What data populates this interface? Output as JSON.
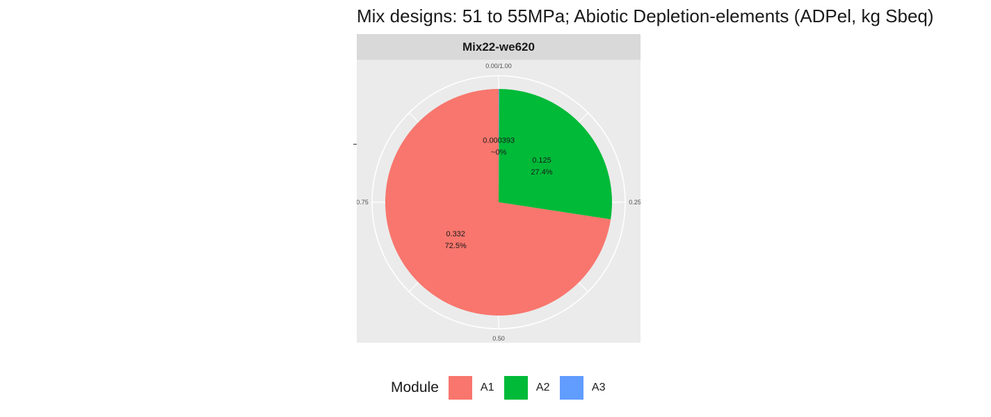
{
  "chart_data": {
    "type": "pie",
    "title": "Mix designs: 51 to 55MPa; Abiotic Depletion-elements (ADPel, kg Sbeq)",
    "facet": "Mix22-we620",
    "legend_title": "Module",
    "legend_position": "bottom",
    "grid": true,
    "theta_axis_ticks": [
      {
        "value": 0,
        "label": "0.00/1.00"
      },
      {
        "value": 0.25,
        "label": "0.25"
      },
      {
        "value": 0.5,
        "label": "0.50"
      },
      {
        "value": 0.75,
        "label": "0.75"
      }
    ],
    "slices": [
      {
        "module": "A3",
        "value": 0.000393,
        "value_label": "0.000393",
        "percent_label": "~0%",
        "color": "#619cff"
      },
      {
        "module": "A2",
        "value": 0.125,
        "value_label": "0.125",
        "percent_label": "27.4%",
        "color": "#00ba38"
      },
      {
        "module": "A1",
        "value": 0.332,
        "value_label": "0.332",
        "percent_label": "72.5%",
        "color": "#f8766d"
      }
    ],
    "legend": [
      {
        "label": "A1",
        "color": "#f8766d"
      },
      {
        "label": "A2",
        "color": "#00ba38"
      },
      {
        "label": "A3",
        "color": "#619cff"
      }
    ]
  }
}
